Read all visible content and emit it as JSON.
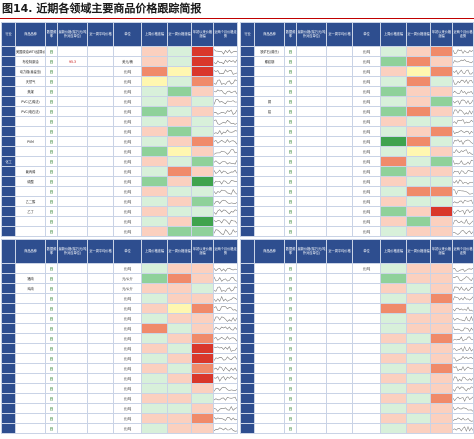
{
  "figure": {
    "title": "图14. 近期各领域主要商品价格跟踪简报"
  },
  "colors": {
    "header": "#2e4e8f",
    "up_strong": "#d9372b",
    "up_mid": "#f08a6a",
    "up_light": "#fbd0bf",
    "down_strong": "#3fa34d",
    "down_mid": "#8fd19a",
    "down_light": "#d8f0da",
    "neutral": "#fff7b0",
    "trend": "#7a7a7a"
  },
  "header": {
    "top": [
      "行业",
      "商品品种",
      "数据频率",
      "最新价格(除万元/吨外对应单位)",
      "近一周平均价格",
      "单位",
      "上周价格涨幅",
      "近一周价格涨幅",
      "年初以来价格涨幅",
      "近两个月价格走势"
    ],
    "bottom": [
      "商品品种",
      "数据频率",
      "最新价格(除万元/吨外对应单位)",
      "近一周平均价格",
      "单位",
      "上周价格涨幅",
      "近一周价格涨幅",
      "年初以来价格涨幅",
      "近两个月价格走势"
    ]
  },
  "top_left": [
    {
      "sector": "",
      "name": "美国原油WTI(结算价)",
      "freq": "日",
      "price": "",
      "avg": "",
      "unit": "",
      "w1": "",
      "w2": "",
      "ytd": "",
      "tone": [
        "up_light",
        "down_light",
        "up_strong"
      ]
    },
    {
      "sector": "",
      "name": "布伦特原油",
      "freq": "日",
      "price": "95.3",
      "avg": "",
      "unit": "美元/桶",
      "w1": "",
      "w2": "",
      "ytd": "",
      "tone": [
        "up_light",
        "down_light",
        "up_strong"
      ]
    },
    {
      "sector": "",
      "name": "动力煤(秦皇岛)",
      "freq": "日",
      "price": "",
      "avg": "",
      "unit": "元/吨",
      "w1": "",
      "w2": "",
      "ytd": "",
      "tone": [
        "up_mid",
        "neutral",
        "up_strong"
      ]
    },
    {
      "sector": "",
      "name": "天然气",
      "freq": "日",
      "price": "",
      "avg": "",
      "unit": "元/吨",
      "w1": "",
      "w2": "",
      "ytd": "",
      "tone": [
        "neutral",
        "down_light",
        "up_mid"
      ]
    },
    {
      "sector": "",
      "name": "焦煤",
      "freq": "日",
      "price": "",
      "avg": "",
      "unit": "元/吨",
      "w1": "",
      "w2": "",
      "ytd": "",
      "tone": [
        "down_light",
        "down_mid",
        "up_light"
      ]
    },
    {
      "sector": "",
      "name": "PVC(乙烯法)",
      "freq": "日",
      "price": "",
      "avg": "",
      "unit": "元/吨",
      "w1": "",
      "w2": "",
      "ytd": "",
      "tone": [
        "down_light",
        "up_light",
        "down_light"
      ]
    },
    {
      "sector": "",
      "name": "PVC(电石法)",
      "freq": "日",
      "price": "",
      "avg": "",
      "unit": "元/吨",
      "w1": "",
      "w2": "",
      "ytd": "",
      "tone": [
        "down_mid",
        "down_light",
        "up_light"
      ]
    },
    {
      "sector": "",
      "name": "",
      "freq": "日",
      "price": "",
      "avg": "",
      "unit": "元/吨",
      "w1": "",
      "w2": "",
      "ytd": "",
      "tone": [
        "down_light",
        "up_light",
        "down_light"
      ]
    },
    {
      "sector": "",
      "name": "",
      "freq": "日",
      "price": "",
      "avg": "",
      "unit": "元/吨",
      "w1": "",
      "w2": "",
      "ytd": "",
      "tone": [
        "up_light",
        "down_mid",
        "down_light"
      ]
    },
    {
      "sector": "",
      "name": "PVM",
      "freq": "日",
      "price": "",
      "avg": "",
      "unit": "元/吨",
      "w1": "",
      "w2": "",
      "ytd": "",
      "tone": [
        "down_light",
        "up_light",
        "up_mid"
      ]
    },
    {
      "sector": "",
      "name": "",
      "freq": "日",
      "price": "",
      "avg": "",
      "unit": "元/吨",
      "w1": "",
      "w2": "",
      "ytd": "",
      "tone": [
        "down_mid",
        "neutral",
        "up_light"
      ]
    },
    {
      "sector": "化工",
      "name": "",
      "freq": "日",
      "price": "",
      "avg": "",
      "unit": "元/吨",
      "w1": "",
      "w2": "",
      "ytd": "",
      "tone": [
        "up_light",
        "down_light",
        "down_mid"
      ]
    },
    {
      "sector": "",
      "name": "聚丙烯",
      "freq": "日",
      "price": "",
      "avg": "",
      "unit": "元/吨",
      "w1": "",
      "w2": "",
      "ytd": "",
      "tone": [
        "down_light",
        "up_mid",
        "up_light"
      ]
    },
    {
      "sector": "",
      "name": "硫酸",
      "freq": "日",
      "price": "",
      "avg": "",
      "unit": "元/吨",
      "w1": "",
      "w2": "",
      "ytd": "",
      "tone": [
        "down_mid",
        "up_light",
        "down_strong"
      ]
    },
    {
      "sector": "",
      "name": "",
      "freq": "日",
      "price": "",
      "avg": "",
      "unit": "元/吨",
      "w1": "",
      "w2": "",
      "ytd": "",
      "tone": [
        "up_light",
        "down_light",
        "down_light"
      ]
    },
    {
      "sector": "",
      "name": "乙二醇",
      "freq": "日",
      "price": "",
      "avg": "",
      "unit": "元/吨",
      "w1": "",
      "w2": "",
      "ytd": "",
      "tone": [
        "down_light",
        "up_light",
        "down_mid"
      ]
    },
    {
      "sector": "",
      "name": "乙丁",
      "freq": "日",
      "price": "",
      "avg": "",
      "unit": "元/吨",
      "w1": "",
      "w2": "",
      "ytd": "",
      "tone": [
        "up_light",
        "down_light",
        "down_light"
      ]
    },
    {
      "sector": "",
      "name": "",
      "freq": "日",
      "price": "",
      "avg": "",
      "unit": "元/吨",
      "w1": "",
      "w2": "",
      "ytd": "",
      "tone": [
        "down_light",
        "up_light",
        "down_strong"
      ]
    },
    {
      "sector": "",
      "name": "",
      "freq": "日",
      "price": "",
      "avg": "",
      "unit": "元/吨",
      "w1": "",
      "w2": "",
      "ytd": "",
      "tone": [
        "up_light",
        "down_mid",
        "down_mid"
      ]
    }
  ],
  "top_right": [
    {
      "name": "铁矿石(普氏)",
      "freq": "日",
      "price": "",
      "avg": "",
      "unit": "元/吨",
      "w1": "",
      "w2": "",
      "ytd": "",
      "tone": [
        "down_light",
        "up_light",
        "up_mid"
      ]
    },
    {
      "name": "螺纹钢",
      "freq": "日",
      "price": "",
      "avg": "",
      "unit": "元/吨",
      "w1": "",
      "w2": "",
      "ytd": "",
      "tone": [
        "down_mid",
        "up_mid",
        "up_light"
      ]
    },
    {
      "name": "",
      "freq": "日",
      "price": "",
      "avg": "",
      "unit": "元/吨",
      "w1": "",
      "w2": "",
      "ytd": "",
      "tone": [
        "up_light",
        "neutral",
        "up_mid"
      ]
    },
    {
      "name": "",
      "freq": "日",
      "price": "",
      "avg": "",
      "unit": "元/吨",
      "w1": "",
      "w2": "",
      "ytd": "",
      "tone": [
        "down_light",
        "up_mid",
        "down_light"
      ]
    },
    {
      "name": "",
      "freq": "日",
      "price": "",
      "avg": "",
      "unit": "元/吨",
      "w1": "",
      "w2": "",
      "ytd": "",
      "tone": [
        "down_mid",
        "up_light",
        "up_light"
      ]
    },
    {
      "name": "铜",
      "freq": "日",
      "price": "",
      "avg": "",
      "unit": "元/吨",
      "w1": "",
      "w2": "",
      "ytd": "",
      "tone": [
        "down_light",
        "up_light",
        "down_mid"
      ]
    },
    {
      "name": "铝",
      "freq": "日",
      "price": "",
      "avg": "",
      "unit": "元/吨",
      "w1": "",
      "w2": "",
      "ytd": "",
      "tone": [
        "down_mid",
        "up_mid",
        "up_light"
      ]
    },
    {
      "name": "",
      "freq": "日",
      "price": "",
      "avg": "",
      "unit": "元/吨",
      "w1": "",
      "w2": "",
      "ytd": "",
      "tone": [
        "up_light",
        "down_light",
        "down_light"
      ]
    },
    {
      "name": "",
      "freq": "日",
      "price": "",
      "avg": "",
      "unit": "元/吨",
      "w1": "",
      "w2": "",
      "ytd": "",
      "tone": [
        "down_light",
        "up_light",
        "up_mid"
      ]
    },
    {
      "name": "",
      "freq": "日",
      "price": "",
      "avg": "",
      "unit": "元/吨",
      "w1": "",
      "w2": "",
      "ytd": "",
      "tone": [
        "down_strong",
        "up_mid",
        "down_light"
      ]
    },
    {
      "name": "",
      "freq": "日",
      "price": "",
      "avg": "",
      "unit": "元/吨",
      "w1": "",
      "w2": "",
      "ytd": "",
      "tone": [
        "down_light",
        "neutral",
        "up_light"
      ]
    },
    {
      "name": "",
      "freq": "日",
      "price": "",
      "avg": "",
      "unit": "元/吨",
      "w1": "",
      "w2": "",
      "ytd": "",
      "tone": [
        "up_mid",
        "down_light",
        "down_mid"
      ]
    },
    {
      "name": "",
      "freq": "日",
      "price": "",
      "avg": "",
      "unit": "元/吨",
      "w1": "",
      "w2": "",
      "ytd": "",
      "tone": [
        "down_mid",
        "up_light",
        "up_light"
      ]
    },
    {
      "name": "",
      "freq": "日",
      "price": "",
      "avg": "",
      "unit": "元/吨",
      "w1": "",
      "w2": "",
      "ytd": "",
      "tone": [
        "up_light",
        "down_light",
        "down_light"
      ]
    },
    {
      "name": "",
      "freq": "日",
      "price": "",
      "avg": "",
      "unit": "元/吨",
      "w1": "",
      "w2": "",
      "ytd": "",
      "tone": [
        "down_light",
        "up_mid",
        "up_mid"
      ]
    },
    {
      "name": "",
      "freq": "日",
      "price": "",
      "avg": "",
      "unit": "元/吨",
      "w1": "",
      "w2": "",
      "ytd": "",
      "tone": [
        "up_light",
        "down_light",
        "down_light"
      ]
    },
    {
      "name": "",
      "freq": "日",
      "price": "",
      "avg": "",
      "unit": "元/吨",
      "w1": "",
      "w2": "",
      "ytd": "",
      "tone": [
        "down_mid",
        "up_light",
        "up_strong"
      ]
    },
    {
      "name": "",
      "freq": "日",
      "price": "",
      "avg": "",
      "unit": "元/吨",
      "w1": "",
      "w2": "",
      "ytd": "",
      "tone": [
        "up_light",
        "down_mid",
        "up_light"
      ]
    },
    {
      "name": "",
      "freq": "日",
      "price": "",
      "avg": "",
      "unit": "元/吨",
      "w1": "",
      "w2": "",
      "ytd": "",
      "tone": [
        "down_light",
        "up_light",
        "up_light"
      ]
    }
  ],
  "bottom_left": [
    {
      "name": "",
      "freq": "日",
      "price": "",
      "avg": "",
      "unit": "元/吨",
      "w1": "",
      "w2": "",
      "ytd": "",
      "tone": [
        "down_light",
        "up_light",
        "up_light"
      ]
    },
    {
      "name": "猪肉",
      "freq": "日",
      "price": "",
      "avg": "",
      "unit": "元/公斤",
      "w1": "",
      "w2": "",
      "ytd": "",
      "tone": [
        "down_mid",
        "up_mid",
        "up_light"
      ]
    },
    {
      "name": "鸡肉",
      "freq": "日",
      "price": "",
      "avg": "",
      "unit": "元/公斤",
      "w1": "",
      "w2": "",
      "ytd": "",
      "tone": [
        "up_light",
        "up_light",
        "down_light"
      ]
    },
    {
      "name": "",
      "freq": "日",
      "price": "",
      "avg": "",
      "unit": "元/吨",
      "w1": "",
      "w2": "",
      "ytd": "",
      "tone": [
        "down_light",
        "up_light",
        "up_light"
      ]
    },
    {
      "name": "",
      "freq": "日",
      "price": "",
      "avg": "",
      "unit": "元/吨",
      "w1": "",
      "w2": "",
      "ytd": "",
      "tone": [
        "up_light",
        "neutral",
        "up_mid"
      ]
    },
    {
      "name": "",
      "freq": "日",
      "price": "",
      "avg": "",
      "unit": "元/吨",
      "w1": "",
      "w2": "",
      "ytd": "",
      "tone": [
        "down_light",
        "up_light",
        "up_light"
      ]
    },
    {
      "name": "",
      "freq": "日",
      "price": "",
      "avg": "",
      "unit": "元/吨",
      "w1": "",
      "w2": "",
      "ytd": "",
      "tone": [
        "up_mid",
        "down_light",
        "up_light"
      ]
    },
    {
      "name": "",
      "freq": "日",
      "price": "",
      "avg": "",
      "unit": "元/吨",
      "w1": "",
      "w2": "",
      "ytd": "",
      "tone": [
        "down_light",
        "up_light",
        "up_mid"
      ]
    },
    {
      "name": "",
      "freq": "日",
      "price": "",
      "avg": "",
      "unit": "元/吨",
      "w1": "",
      "w2": "",
      "ytd": "",
      "tone": [
        "up_light",
        "down_light",
        "up_strong"
      ]
    },
    {
      "name": "",
      "freq": "日",
      "price": "",
      "avg": "",
      "unit": "元/吨",
      "w1": "",
      "w2": "",
      "ytd": "",
      "tone": [
        "down_light",
        "up_light",
        "up_strong"
      ]
    },
    {
      "name": "",
      "freq": "日",
      "price": "",
      "avg": "",
      "unit": "元/吨",
      "w1": "",
      "w2": "",
      "ytd": "",
      "tone": [
        "up_light",
        "down_light",
        "up_mid"
      ]
    },
    {
      "name": "",
      "freq": "日",
      "price": "",
      "avg": "",
      "unit": "元/吨",
      "w1": "",
      "w2": "",
      "ytd": "",
      "tone": [
        "down_light",
        "up_light",
        "up_strong"
      ]
    },
    {
      "name": "",
      "freq": "日",
      "price": "",
      "avg": "",
      "unit": "元/吨",
      "w1": "",
      "w2": "",
      "ytd": "",
      "tone": [
        "down_light",
        "down_light",
        "up_light"
      ]
    },
    {
      "name": "",
      "freq": "日",
      "price": "",
      "avg": "",
      "unit": "元/吨",
      "w1": "",
      "w2": "",
      "ytd": "",
      "tone": [
        "up_light",
        "up_light",
        "down_light"
      ]
    },
    {
      "name": "",
      "freq": "日",
      "price": "",
      "avg": "",
      "unit": "元/吨",
      "w1": "",
      "w2": "",
      "ytd": "",
      "tone": [
        "down_light",
        "down_light",
        "up_light"
      ]
    },
    {
      "name": "",
      "freq": "日",
      "price": "",
      "avg": "",
      "unit": "元/吨",
      "w1": "",
      "w2": "",
      "ytd": "",
      "tone": [
        "up_light",
        "up_light",
        "up_mid"
      ]
    },
    {
      "name": "",
      "freq": "日",
      "price": "",
      "avg": "",
      "unit": "元/吨",
      "w1": "",
      "w2": "",
      "ytd": "",
      "tone": [
        "down_light",
        "up_light",
        "up_light"
      ]
    }
  ],
  "bottom_right": [
    {
      "name": "",
      "freq": "日",
      "price": "",
      "avg": "",
      "unit": "元/吨",
      "w1": "",
      "w2": "",
      "ytd": "",
      "tone": [
        "down_light",
        "up_light",
        "up_light"
      ]
    },
    {
      "name": "",
      "freq": "日",
      "price": "",
      "avg": "",
      "unit": "",
      "w1": "",
      "w2": "",
      "ytd": "",
      "tone": [
        "down_mid",
        "up_light",
        "up_light"
      ]
    },
    {
      "name": "",
      "freq": "日",
      "price": "",
      "avg": "",
      "unit": "",
      "w1": "",
      "w2": "",
      "ytd": "",
      "tone": [
        "up_light",
        "down_light",
        "up_light"
      ]
    },
    {
      "name": "",
      "freq": "日",
      "price": "",
      "avg": "",
      "unit": "",
      "w1": "",
      "w2": "",
      "ytd": "",
      "tone": [
        "down_light",
        "up_light",
        "up_mid"
      ]
    },
    {
      "name": "",
      "freq": "日",
      "price": "",
      "avg": "",
      "unit": "",
      "w1": "",
      "w2": "",
      "ytd": "",
      "tone": [
        "up_mid",
        "down_light",
        "up_light"
      ]
    },
    {
      "name": "",
      "freq": "日",
      "price": "",
      "avg": "",
      "unit": "",
      "w1": "",
      "w2": "",
      "ytd": "",
      "tone": [
        "down_light",
        "up_light",
        "up_light"
      ]
    },
    {
      "name": "",
      "freq": "日",
      "price": "",
      "avg": "",
      "unit": "",
      "w1": "",
      "w2": "",
      "ytd": "",
      "tone": [
        "down_light",
        "up_light",
        "up_light"
      ]
    },
    {
      "name": "",
      "freq": "日",
      "price": "",
      "avg": "",
      "unit": "",
      "w1": "",
      "w2": "",
      "ytd": "",
      "tone": [
        "up_light",
        "down_light",
        "up_mid"
      ]
    },
    {
      "name": "",
      "freq": "日",
      "price": "",
      "avg": "",
      "unit": "",
      "w1": "",
      "w2": "",
      "ytd": "",
      "tone": [
        "down_light",
        "up_light",
        "up_light"
      ]
    },
    {
      "name": "",
      "freq": "日",
      "price": "",
      "avg": "",
      "unit": "",
      "w1": "",
      "w2": "",
      "ytd": "",
      "tone": [
        "up_light",
        "down_light",
        "up_light"
      ]
    },
    {
      "name": "",
      "freq": "日",
      "price": "",
      "avg": "",
      "unit": "",
      "w1": "",
      "w2": "",
      "ytd": "",
      "tone": [
        "down_light",
        "up_light",
        "up_mid"
      ]
    },
    {
      "name": "",
      "freq": "日",
      "price": "",
      "avg": "",
      "unit": "",
      "w1": "",
      "w2": "",
      "ytd": "",
      "tone": [
        "up_light",
        "down_light",
        "up_light"
      ]
    },
    {
      "name": "",
      "freq": "日",
      "price": "",
      "avg": "",
      "unit": "",
      "w1": "",
      "w2": "",
      "ytd": "",
      "tone": [
        "down_light",
        "up_light",
        "up_light"
      ]
    },
    {
      "name": "",
      "freq": "日",
      "price": "",
      "avg": "",
      "unit": "",
      "w1": "",
      "w2": "",
      "ytd": "",
      "tone": [
        "up_light",
        "down_light",
        "up_mid"
      ]
    },
    {
      "name": "",
      "freq": "日",
      "price": "",
      "avg": "",
      "unit": "",
      "w1": "",
      "w2": "",
      "ytd": "",
      "tone": [
        "down_light",
        "up_light",
        "up_light"
      ]
    },
    {
      "name": "",
      "freq": "日",
      "price": "",
      "avg": "",
      "unit": "",
      "w1": "",
      "w2": "",
      "ytd": "",
      "tone": [
        "up_light",
        "down_light",
        "up_light"
      ]
    },
    {
      "name": "",
      "freq": "日",
      "price": "",
      "avg": "",
      "unit": "",
      "w1": "",
      "w2": "",
      "ytd": "",
      "tone": [
        "down_light",
        "up_light",
        "up_light"
      ]
    }
  ]
}
